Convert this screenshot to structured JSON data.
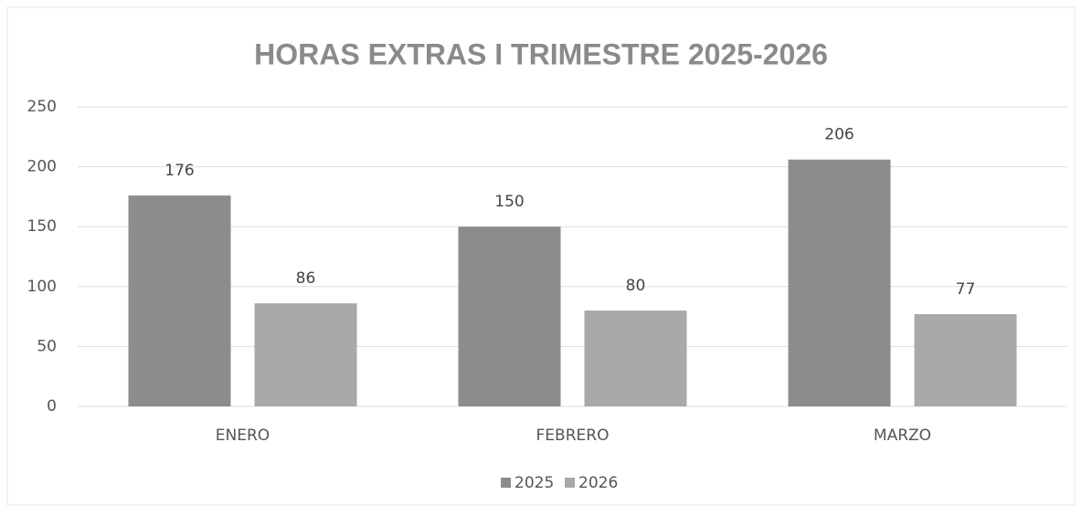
{
  "chart_data": {
    "type": "bar",
    "title": "HORAS EXTRAS I TRIMESTRE 2025-2026",
    "categories": [
      "ENERO",
      "FEBRERO",
      "MARZO"
    ],
    "series": [
      {
        "name": "2025",
        "color": "#8c8c8c",
        "values": [
          176,
          150,
          206
        ]
      },
      {
        "name": "2026",
        "color": "#a9a9a9",
        "values": [
          86,
          80,
          77
        ]
      }
    ],
    "ylim": [
      0,
      250
    ],
    "yticks": [
      0,
      50,
      100,
      150,
      200,
      250
    ],
    "grid": true,
    "legend": "bottom"
  }
}
